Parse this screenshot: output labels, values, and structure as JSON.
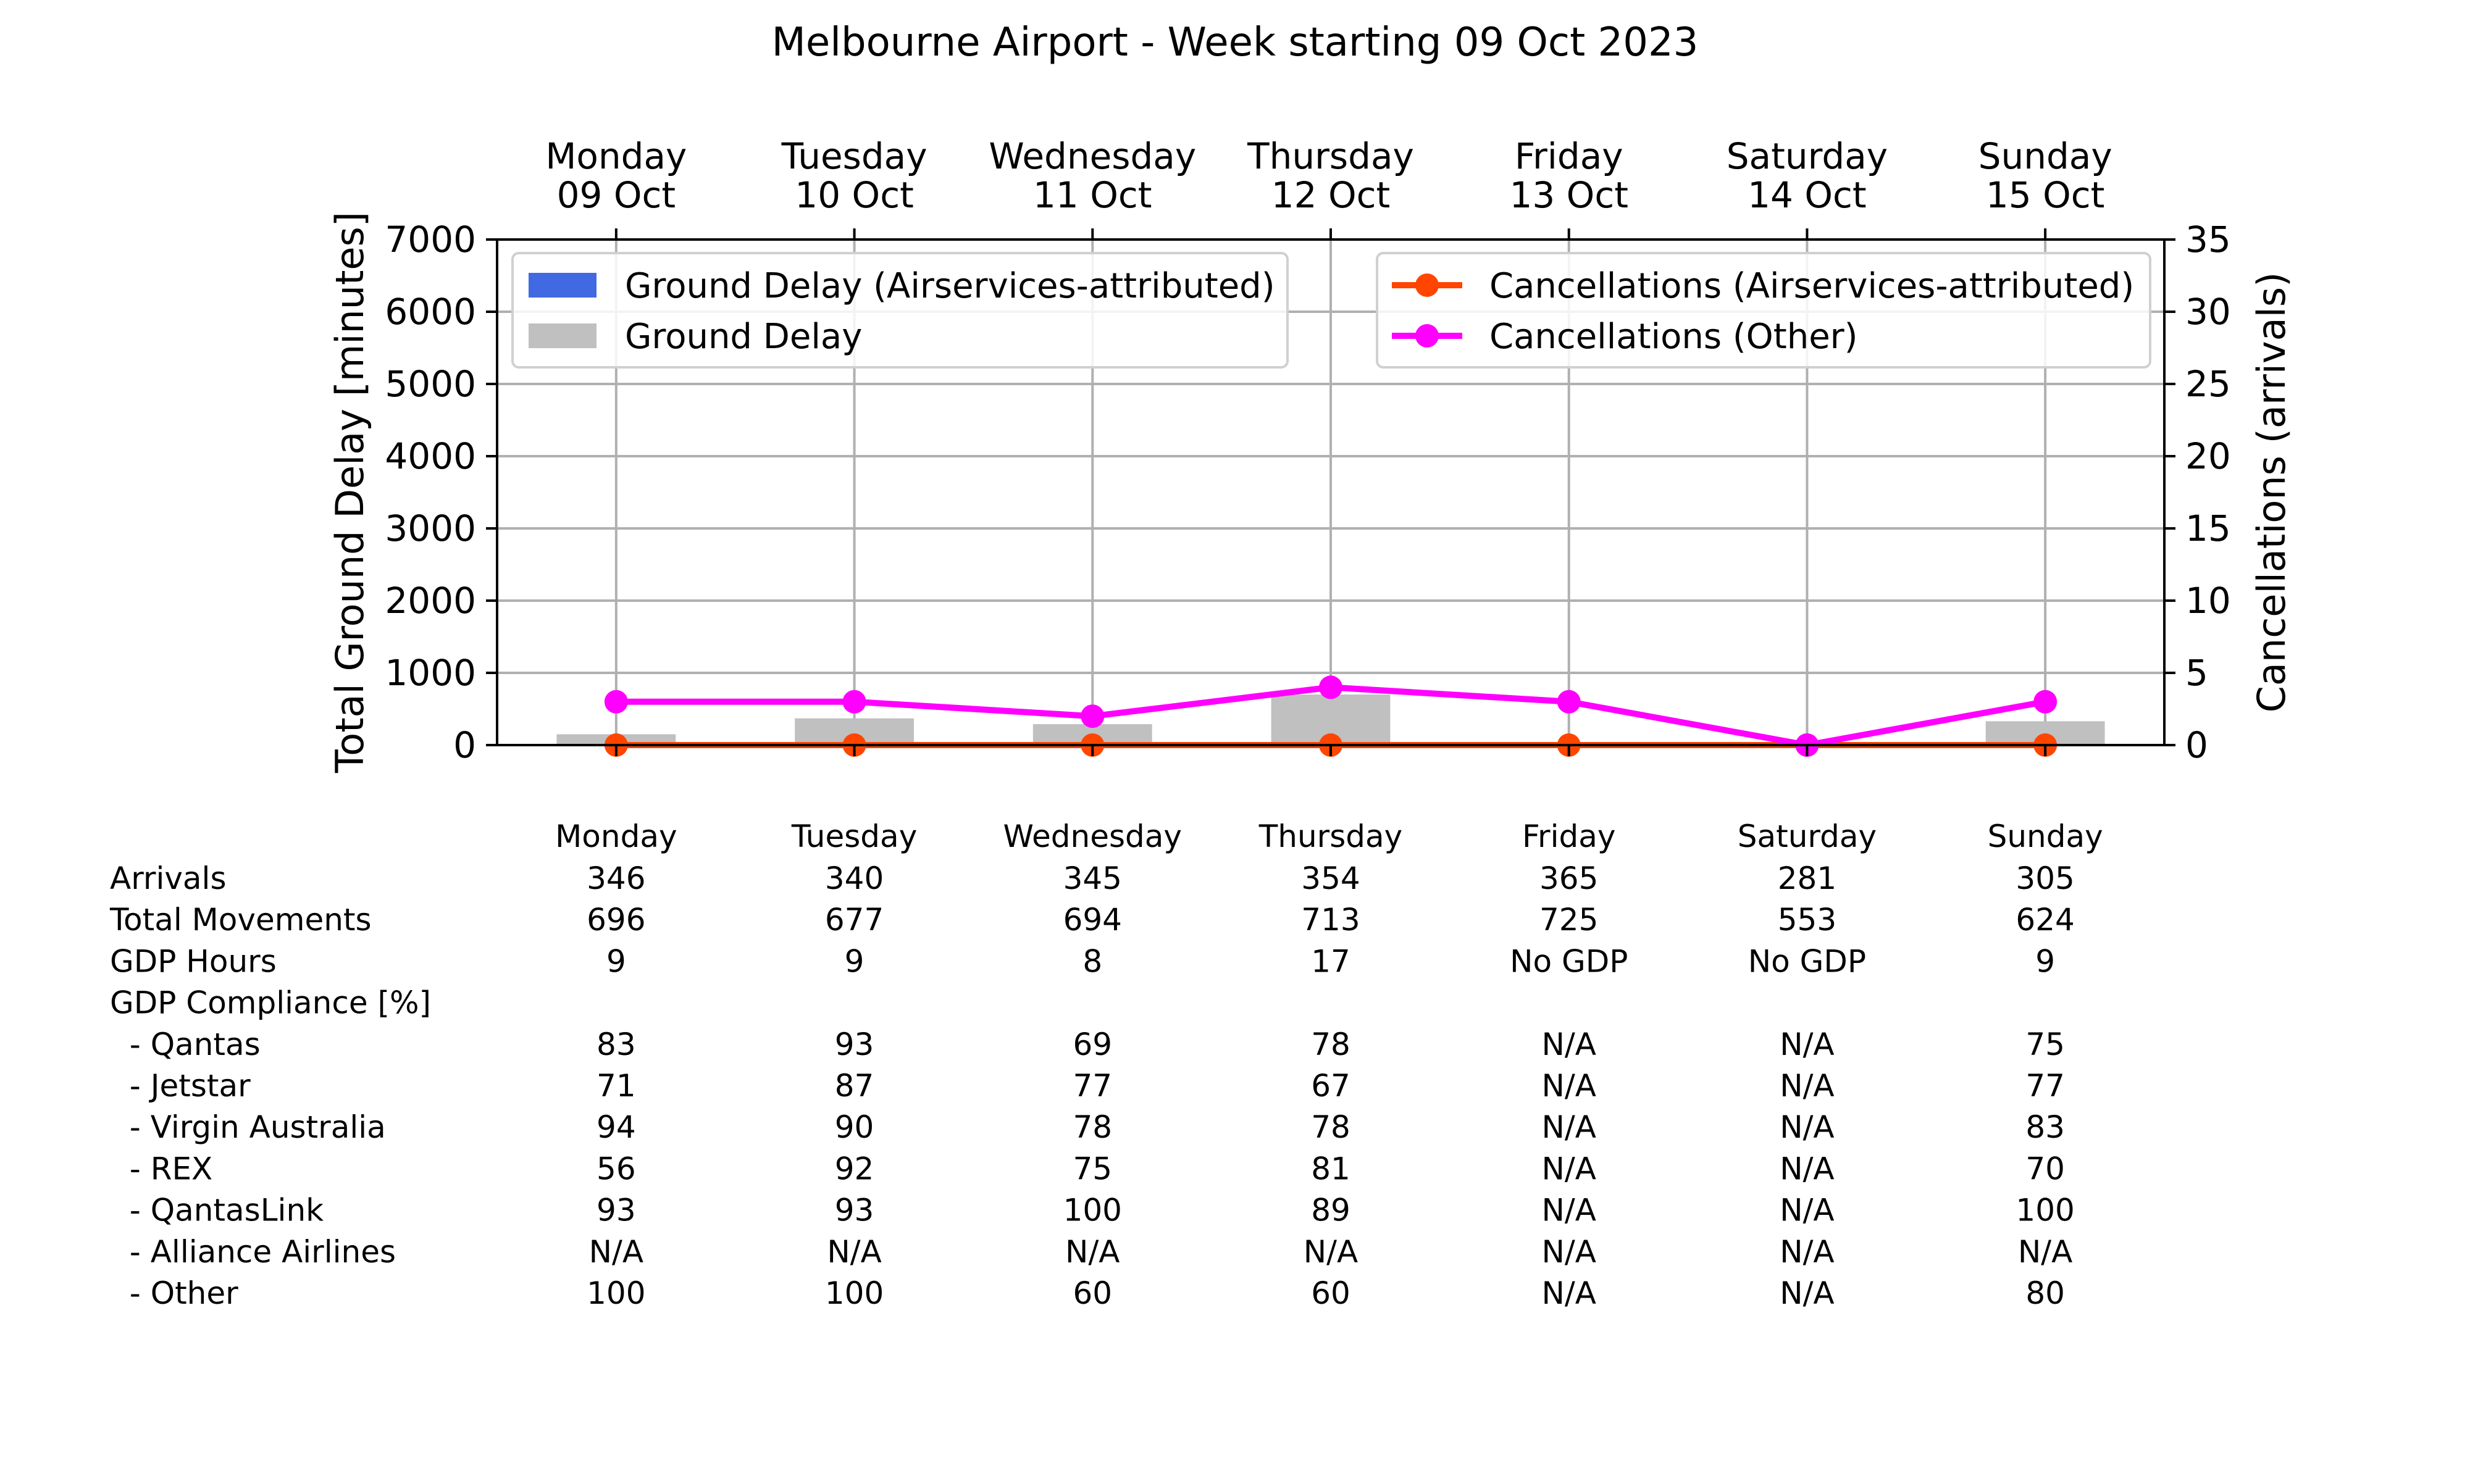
{
  "chart_data": {
    "type": "bar",
    "title": "Melbourne Airport - Week starting 09 Oct 2023",
    "categories": [
      {
        "day": "Monday",
        "date": "09 Oct"
      },
      {
        "day": "Tuesday",
        "date": "10 Oct"
      },
      {
        "day": "Wednesday",
        "date": "11 Oct"
      },
      {
        "day": "Thursday",
        "date": "12 Oct"
      },
      {
        "day": "Friday",
        "date": "13 Oct"
      },
      {
        "day": "Saturday",
        "date": "14 Oct"
      },
      {
        "day": "Sunday",
        "date": "15 Oct"
      }
    ],
    "ylabel": "Total Ground Delay [minutes]",
    "ylim": [
      0,
      7000
    ],
    "yticks": [
      0,
      1000,
      2000,
      3000,
      4000,
      5000,
      6000,
      7000
    ],
    "y2label": "Cancellations (arrivals)",
    "y2lim": [
      0,
      35
    ],
    "y2ticks": [
      0,
      5,
      10,
      15,
      20,
      25,
      30,
      35
    ],
    "grid": true,
    "bar_series": [
      {
        "name": "Ground Delay (Airservices-attributed)",
        "color": "#4169e1",
        "values": [
          0,
          0,
          0,
          0,
          0,
          0,
          0
        ]
      },
      {
        "name": "Ground Delay",
        "color": "#c0c0c0",
        "values": [
          150,
          370,
          290,
          700,
          0,
          0,
          330
        ]
      }
    ],
    "line_series": [
      {
        "name": "Cancellations (Airservices-attributed)",
        "color": "#ff4500",
        "axis": "right",
        "values": [
          0,
          0,
          0,
          0,
          0,
          0,
          0
        ]
      },
      {
        "name": "Cancellations (Other)",
        "color": "#ff00ff",
        "axis": "right",
        "values": [
          3,
          3,
          2,
          4,
          3,
          0,
          3
        ]
      }
    ],
    "legends": {
      "left": "upper-left",
      "right": "upper-right"
    }
  },
  "table": {
    "header": [
      "Monday",
      "Tuesday",
      "Wednesday",
      "Thursday",
      "Friday",
      "Saturday",
      "Sunday"
    ],
    "rows": [
      {
        "label": "Arrivals",
        "values": [
          "346",
          "340",
          "345",
          "354",
          "365",
          "281",
          "305"
        ]
      },
      {
        "label": "Total Movements",
        "values": [
          "696",
          "677",
          "694",
          "713",
          "725",
          "553",
          "624"
        ]
      },
      {
        "label": "GDP Hours",
        "values": [
          "9",
          "9",
          "8",
          "17",
          "No GDP",
          "No GDP",
          "9"
        ]
      },
      {
        "label": "GDP Compliance [%]",
        "values": [
          "",
          "",
          "",
          "",
          "",
          "",
          ""
        ]
      },
      {
        "label": "  - Qantas",
        "values": [
          "83",
          "93",
          "69",
          "78",
          "N/A",
          "N/A",
          "75"
        ]
      },
      {
        "label": "  - Jetstar",
        "values": [
          "71",
          "87",
          "77",
          "67",
          "N/A",
          "N/A",
          "77"
        ]
      },
      {
        "label": "  - Virgin Australia",
        "values": [
          "94",
          "90",
          "78",
          "78",
          "N/A",
          "N/A",
          "83"
        ]
      },
      {
        "label": "  - REX",
        "values": [
          "56",
          "92",
          "75",
          "81",
          "N/A",
          "N/A",
          "70"
        ]
      },
      {
        "label": "  - QantasLink",
        "values": [
          "93",
          "93",
          "100",
          "89",
          "N/A",
          "N/A",
          "100"
        ]
      },
      {
        "label": "  - Alliance Airlines",
        "values": [
          "N/A",
          "N/A",
          "N/A",
          "N/A",
          "N/A",
          "N/A",
          "N/A"
        ]
      },
      {
        "label": "  - Other",
        "values": [
          "100",
          "100",
          "60",
          "60",
          "N/A",
          "N/A",
          "80"
        ]
      }
    ]
  }
}
